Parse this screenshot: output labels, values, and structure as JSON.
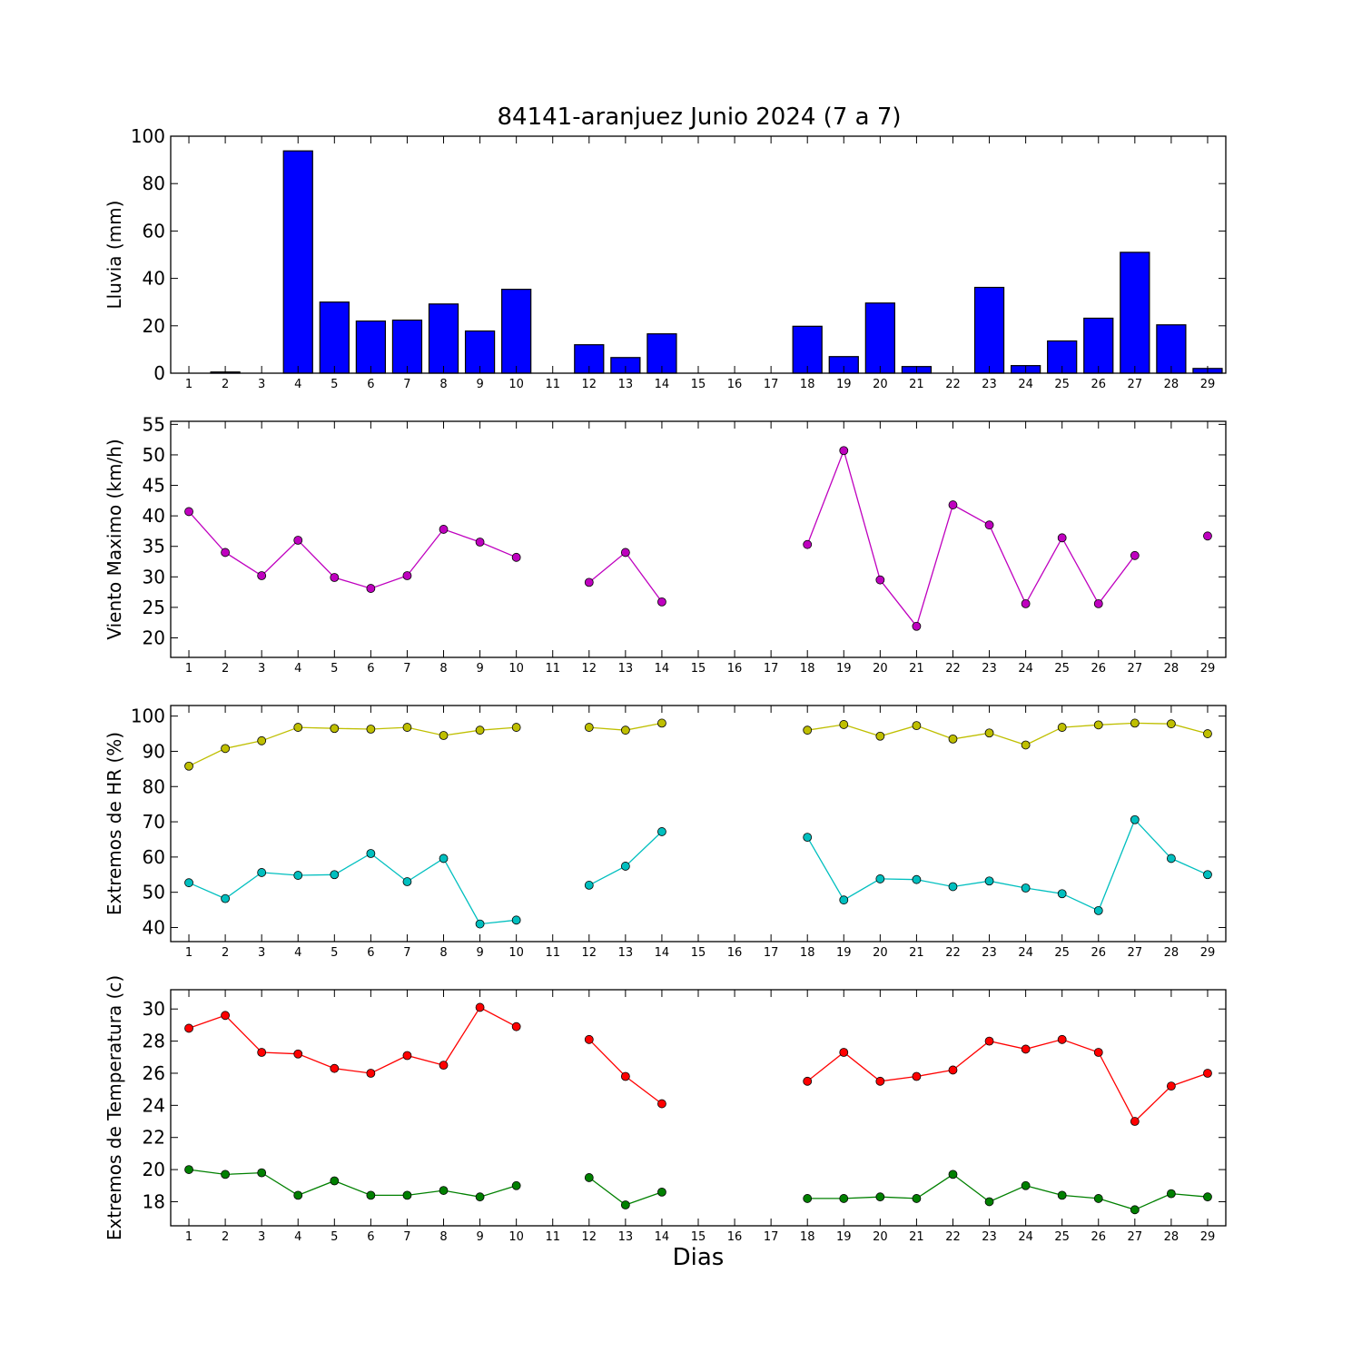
{
  "title": "84141-aranjuez Junio 2024  (7 a 7)",
  "xlabel": "Dias",
  "chart_data": [
    {
      "type": "bar",
      "id": "lluvia",
      "ylabel": "Lluvia (mm)",
      "ylim": [
        0,
        100
      ],
      "yticks": [
        0,
        20,
        40,
        60,
        80,
        100
      ],
      "xlim": [
        0.5,
        29.5
      ],
      "x": [
        1,
        2,
        3,
        4,
        5,
        6,
        7,
        8,
        9,
        10,
        11,
        12,
        13,
        14,
        15,
        16,
        17,
        18,
        19,
        20,
        21,
        22,
        23,
        24,
        25,
        26,
        27,
        28,
        29
      ],
      "series": [
        {
          "color": "#0000ff",
          "values": [
            0,
            0.5,
            0,
            93.8,
            30,
            22,
            22.4,
            29.2,
            17.8,
            35.4,
            0,
            12,
            6.6,
            16.6,
            0,
            0,
            0,
            19.8,
            7,
            29.6,
            2.8,
            0,
            36.2,
            3.2,
            13.6,
            23.2,
            51,
            20.4,
            2
          ]
        }
      ]
    },
    {
      "type": "line",
      "id": "viento",
      "ylabel": "Viento Maximo (km/h)",
      "ylim": [
        16.8,
        55.5
      ],
      "yticks": [
        20,
        25,
        30,
        35,
        40,
        45,
        50,
        55
      ],
      "xlim": [
        0.5,
        29.5
      ],
      "x": [
        1,
        2,
        3,
        4,
        5,
        6,
        7,
        8,
        9,
        10,
        11,
        12,
        13,
        14,
        15,
        16,
        17,
        18,
        19,
        20,
        21,
        22,
        23,
        24,
        25,
        26,
        27,
        28,
        29
      ],
      "series": [
        {
          "color": "#bf00bf",
          "values": [
            40.7,
            34,
            30.2,
            36,
            29.9,
            28.1,
            30.2,
            37.8,
            35.7,
            33.2,
            null,
            29.1,
            34,
            25.9,
            null,
            null,
            null,
            35.3,
            50.7,
            29.5,
            21.9,
            41.8,
            38.5,
            25.6,
            36.4,
            25.6,
            33.5,
            null,
            36.7
          ]
        }
      ]
    },
    {
      "type": "line",
      "id": "hr",
      "ylabel": "Extremos de HR (%)",
      "ylim": [
        36,
        103
      ],
      "yticks": [
        40,
        50,
        60,
        70,
        80,
        90,
        100
      ],
      "xlim": [
        0.5,
        29.5
      ],
      "x": [
        1,
        2,
        3,
        4,
        5,
        6,
        7,
        8,
        9,
        10,
        11,
        12,
        13,
        14,
        15,
        16,
        17,
        18,
        19,
        20,
        21,
        22,
        23,
        24,
        25,
        26,
        27,
        28,
        29
      ],
      "series": [
        {
          "color": "#bfbf00",
          "values": [
            85.8,
            90.8,
            93,
            96.8,
            96.5,
            96.3,
            96.8,
            94.5,
            96,
            96.8,
            null,
            96.8,
            96,
            98,
            null,
            null,
            null,
            96,
            97.6,
            94.3,
            97.3,
            93.5,
            95.2,
            91.8,
            96.8,
            97.5,
            98,
            97.8,
            95
          ]
        },
        {
          "color": "#00bfbf",
          "values": [
            52.7,
            48.2,
            55.6,
            54.8,
            55,
            61,
            53,
            59.6,
            41,
            42.1,
            null,
            52,
            57.4,
            67.2,
            null,
            null,
            null,
            65.6,
            47.8,
            53.8,
            53.6,
            51.6,
            53.2,
            51.2,
            49.6,
            44.8,
            70.6,
            59.6,
            55
          ]
        }
      ]
    },
    {
      "type": "line",
      "id": "temperatura",
      "ylabel": "Extremos de Temperatura (c)",
      "ylim": [
        16.5,
        31.2
      ],
      "yticks": [
        18,
        20,
        22,
        24,
        26,
        28,
        30
      ],
      "xlim": [
        0.5,
        29.5
      ],
      "x": [
        1,
        2,
        3,
        4,
        5,
        6,
        7,
        8,
        9,
        10,
        11,
        12,
        13,
        14,
        15,
        16,
        17,
        18,
        19,
        20,
        21,
        22,
        23,
        24,
        25,
        26,
        27,
        28,
        29
      ],
      "series": [
        {
          "color": "#ff0000",
          "values": [
            28.8,
            29.6,
            27.3,
            27.2,
            26.3,
            26,
            27.1,
            26.5,
            30.1,
            28.9,
            null,
            28.1,
            25.8,
            24.1,
            null,
            null,
            null,
            25.5,
            27.3,
            25.5,
            25.8,
            26.2,
            28,
            27.5,
            28.1,
            27.3,
            23,
            25.2,
            26
          ]
        },
        {
          "color": "#008000",
          "values": [
            20,
            19.7,
            19.8,
            18.4,
            19.3,
            18.4,
            18.4,
            18.7,
            18.3,
            19,
            null,
            19.5,
            17.8,
            18.6,
            null,
            null,
            null,
            18.2,
            18.2,
            18.3,
            18.2,
            19.7,
            18,
            19,
            18.4,
            18.2,
            17.5,
            18.5,
            18.3
          ]
        }
      ]
    }
  ]
}
